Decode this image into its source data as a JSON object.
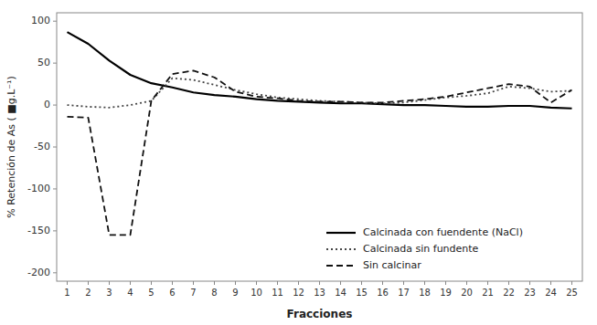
{
  "chart_data": {
    "type": "line",
    "ylabel": "% Retención de As ( ■g.L⁻¹)",
    "xlabel": "Fracciones",
    "x": [
      1,
      2,
      3,
      4,
      5,
      6,
      7,
      8,
      9,
      10,
      11,
      12,
      13,
      14,
      15,
      16,
      17,
      18,
      19,
      20,
      21,
      22,
      23,
      24,
      25
    ],
    "series": [
      {
        "name": "Calcinada con fuendente (NaCl)",
        "color": "#000000",
        "line_style": "solid",
        "values": [
          87,
          73,
          53,
          36,
          26,
          21,
          15,
          12,
          10,
          7,
          5,
          4,
          3,
          2,
          2,
          1,
          0,
          0,
          -1,
          -2,
          -2,
          -1,
          -1,
          -3,
          -4
        ]
      },
      {
        "name": "Calcinada sin fundente",
        "color": "#444444",
        "line_style": "dotted",
        "values": [
          0,
          -2,
          -3,
          0,
          5,
          32,
          30,
          24,
          18,
          13,
          9,
          7,
          5,
          4,
          3,
          2,
          3,
          6,
          9,
          11,
          14,
          22,
          20,
          16,
          17
        ]
      },
      {
        "name": "Sin calcinar",
        "color": "#111111",
        "line_style": "dashed",
        "values": [
          -14,
          -15,
          -155,
          -155,
          5,
          37,
          41,
          33,
          16,
          10,
          8,
          5,
          4,
          4,
          3,
          3,
          5,
          7,
          10,
          15,
          20,
          25,
          22,
          3,
          18
        ]
      }
    ],
    "xlim": [
      0.5,
      25.5
    ],
    "ylim": [
      -210,
      110
    ],
    "xticks": [
      1,
      2,
      3,
      4,
      5,
      6,
      7,
      8,
      9,
      10,
      11,
      12,
      13,
      14,
      15,
      16,
      17,
      18,
      19,
      20,
      21,
      22,
      23,
      24,
      25
    ],
    "yticks": [
      -200,
      -150,
      -100,
      -50,
      0,
      50,
      100
    ],
    "legend": "lower right"
  }
}
